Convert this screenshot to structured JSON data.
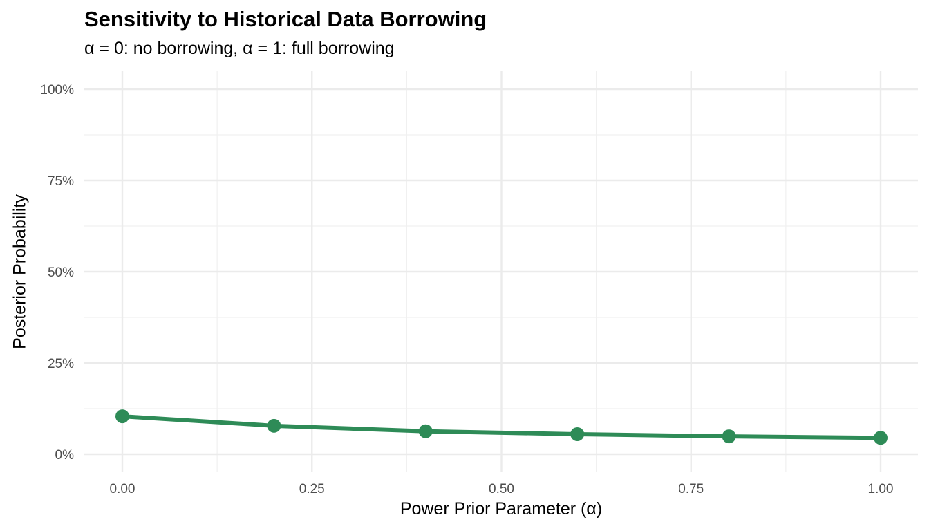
{
  "chart_data": {
    "type": "line",
    "title": "Sensitivity to Historical Data Borrowing",
    "subtitle": "α = 0: no borrowing, α = 1: full borrowing",
    "xlabel": "Power Prior Parameter (α)",
    "ylabel": "Posterior Probability",
    "x": [
      0.0,
      0.2,
      0.4,
      0.6,
      0.8,
      1.0
    ],
    "series": [
      {
        "name": "Posterior Probability",
        "values": [
          0.104,
          0.078,
          0.063,
          0.055,
          0.049,
          0.045
        ],
        "color": "#2E8B57"
      }
    ],
    "xlim": [
      0,
      1
    ],
    "ylim": [
      0,
      1
    ],
    "x_ticks": [
      "0.00",
      "0.25",
      "0.50",
      "0.75",
      "1.00"
    ],
    "y_ticks": [
      "0%",
      "25%",
      "50%",
      "75%",
      "100%"
    ],
    "grid": true,
    "legend": "none"
  }
}
